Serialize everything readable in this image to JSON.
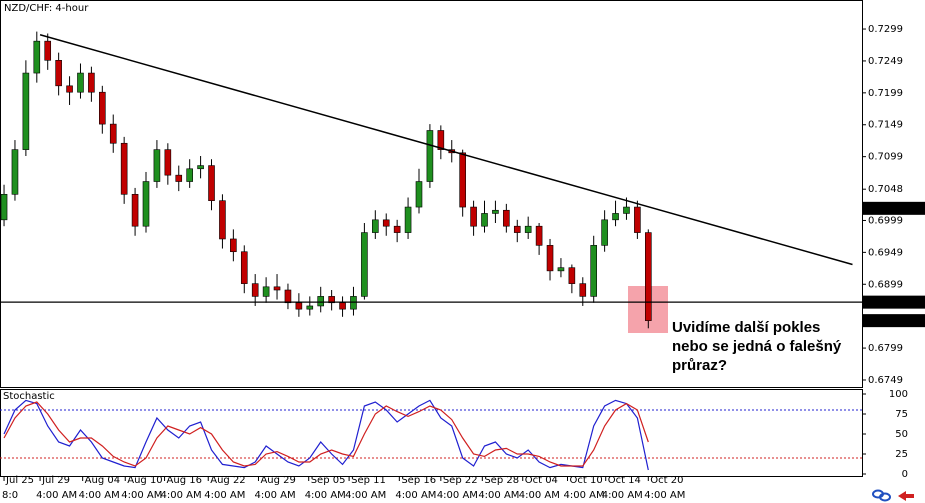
{
  "chart_data": [
    {
      "type": "candlestick",
      "title": "NZD/CHF: 4-hour",
      "open": [
        0.7,
        0.704,
        0.711,
        0.723,
        0.728,
        0.725,
        0.721,
        0.72,
        0.723,
        0.72,
        0.715,
        0.712,
        0.704,
        0.699,
        0.706,
        0.711,
        0.707,
        0.706,
        0.708,
        0.7085,
        0.703,
        0.697,
        0.695,
        0.69,
        0.688,
        0.6895,
        0.689,
        0.687,
        0.686,
        0.6865,
        0.688,
        0.687,
        0.686,
        0.688,
        0.698,
        0.7,
        0.699,
        0.698,
        0.702,
        0.706,
        0.714,
        0.711,
        0.7105,
        0.702,
        0.699,
        0.701,
        0.7015,
        0.699,
        0.698,
        0.699,
        0.696,
        0.692,
        0.6925,
        0.69,
        0.688,
        0.696,
        0.7,
        0.701,
        0.702,
        0.698
      ],
      "high": [
        0.7055,
        0.7125,
        0.725,
        0.7295,
        0.7292,
        0.7262,
        0.7225,
        0.7245,
        0.724,
        0.721,
        0.7165,
        0.713,
        0.705,
        0.7075,
        0.7125,
        0.712,
        0.7085,
        0.7095,
        0.71,
        0.7095,
        0.704,
        0.6985,
        0.696,
        0.6915,
        0.691,
        0.6915,
        0.69,
        0.6885,
        0.688,
        0.6895,
        0.689,
        0.688,
        0.6895,
        0.6995,
        0.7015,
        0.701,
        0.7,
        0.7035,
        0.708,
        0.715,
        0.7148,
        0.7125,
        0.711,
        0.703,
        0.703,
        0.703,
        0.7025,
        0.7,
        0.7005,
        0.6995,
        0.697,
        0.694,
        0.693,
        0.691,
        0.6975,
        0.7015,
        0.703,
        0.7035,
        0.703,
        0.6985
      ],
      "low": [
        0.699,
        0.703,
        0.71,
        0.7215,
        0.7235,
        0.7195,
        0.718,
        0.719,
        0.7185,
        0.7135,
        0.7105,
        0.7025,
        0.6975,
        0.698,
        0.705,
        0.7055,
        0.7045,
        0.705,
        0.7065,
        0.7015,
        0.6955,
        0.6935,
        0.6885,
        0.6865,
        0.687,
        0.6875,
        0.686,
        0.6848,
        0.685,
        0.6855,
        0.6858,
        0.6848,
        0.685,
        0.6875,
        0.697,
        0.6975,
        0.6965,
        0.697,
        0.701,
        0.705,
        0.7095,
        0.709,
        0.7005,
        0.6975,
        0.698,
        0.6995,
        0.698,
        0.6965,
        0.697,
        0.6945,
        0.6905,
        0.691,
        0.6885,
        0.6865,
        0.687,
        0.695,
        0.699,
        0.7,
        0.697,
        0.683
      ],
      "close": [
        0.704,
        0.711,
        0.723,
        0.728,
        0.725,
        0.721,
        0.72,
        0.723,
        0.72,
        0.715,
        0.712,
        0.704,
        0.699,
        0.706,
        0.711,
        0.707,
        0.706,
        0.708,
        0.7085,
        0.703,
        0.697,
        0.695,
        0.69,
        0.688,
        0.6895,
        0.689,
        0.687,
        0.686,
        0.6865,
        0.688,
        0.687,
        0.686,
        0.688,
        0.698,
        0.7,
        0.699,
        0.698,
        0.702,
        0.706,
        0.714,
        0.711,
        0.7105,
        0.702,
        0.699,
        0.701,
        0.7015,
        0.699,
        0.698,
        0.699,
        0.696,
        0.692,
        0.6925,
        0.69,
        0.688,
        0.696,
        0.7,
        0.701,
        0.702,
        0.698,
        0.6842
      ],
      "up_color": "#1f8f1f",
      "down_color": "#c00000",
      "wick_color": "#000000",
      "xlim": [
        -0.37,
        78.57
      ],
      "xticks": [
        {
          "value": 0,
          "label": "Jul 25"
        },
        {
          "value": 3.3,
          "label": "Jul 29"
        },
        {
          "value": 7.2,
          "label": "Aug 04"
        },
        {
          "value": 11.1,
          "label": "Aug 10"
        },
        {
          "value": 14.7,
          "label": "Aug 16"
        },
        {
          "value": 18.7,
          "label": "Aug 22"
        },
        {
          "value": 23.3,
          "label": "Aug 29"
        },
        {
          "value": 27.9,
          "label": "Sep 05"
        },
        {
          "value": 31.6,
          "label": "Sep 11"
        },
        {
          "value": 36.2,
          "label": "Sep 16"
        },
        {
          "value": 40,
          "label": "Sep 22"
        },
        {
          "value": 43.8,
          "label": "Sep 28"
        },
        {
          "value": 47.5,
          "label": "Oct 04"
        },
        {
          "value": 51.6,
          "label": "Oct 10"
        },
        {
          "value": 55.1,
          "label": "Oct 14"
        },
        {
          "value": 59,
          "label": "Oct 20"
        }
      ],
      "time_labels": [
        "8:0",
        "4:00 AM"
      ],
      "ylim": [
        0.6738,
        0.73445
      ],
      "yticks": [
        0.7299,
        0.7249,
        0.7199,
        0.7149,
        0.7099,
        0.7048,
        0.6999,
        0.6949,
        0.6899,
        0.6799,
        0.6749
      ],
      "trendline": {
        "x": [
          3.3,
          77.7
        ],
        "y": [
          0.729,
          0.693
        ]
      },
      "hline": 0.6871,
      "price_labels": [
        0.7018,
        0.6842
      ],
      "annotation": [
        "Uvidíme další pokles",
        "nebo se jedná o falešný",
        "průraz?"
      ]
    },
    {
      "type": "stochastic",
      "title": "Stochastic",
      "series": [
        {
          "color": "#2020d0",
          "values": [
            50,
            80,
            92,
            88,
            60,
            40,
            35,
            55,
            40,
            20,
            15,
            10,
            8,
            40,
            70,
            55,
            45,
            60,
            65,
            30,
            12,
            10,
            8,
            15,
            35,
            25,
            15,
            10,
            20,
            40,
            25,
            12,
            30,
            85,
            90,
            80,
            65,
            75,
            85,
            92,
            70,
            60,
            20,
            10,
            35,
            40,
            25,
            20,
            30,
            15,
            8,
            12,
            10,
            8,
            60,
            85,
            92,
            88,
            70,
            5
          ]
        },
        {
          "color": "#d02020",
          "values": [
            45,
            70,
            85,
            90,
            75,
            55,
            40,
            45,
            45,
            35,
            22,
            15,
            10,
            20,
            45,
            60,
            55,
            50,
            58,
            50,
            30,
            15,
            10,
            12,
            25,
            28,
            22,
            15,
            15,
            25,
            30,
            25,
            22,
            50,
            75,
            85,
            78,
            72,
            78,
            85,
            80,
            68,
            45,
            25,
            22,
            30,
            32,
            25,
            25,
            22,
            15,
            10,
            10,
            10,
            30,
            60,
            80,
            88,
            80,
            40
          ]
        }
      ],
      "levels": [
        {
          "value": 80,
          "color": "#2020d0"
        },
        {
          "value": 20,
          "color": "#d02020"
        }
      ],
      "ylim": [
        -2.5,
        106.25
      ],
      "yticks": [
        100,
        75,
        50,
        25,
        0
      ]
    }
  ]
}
